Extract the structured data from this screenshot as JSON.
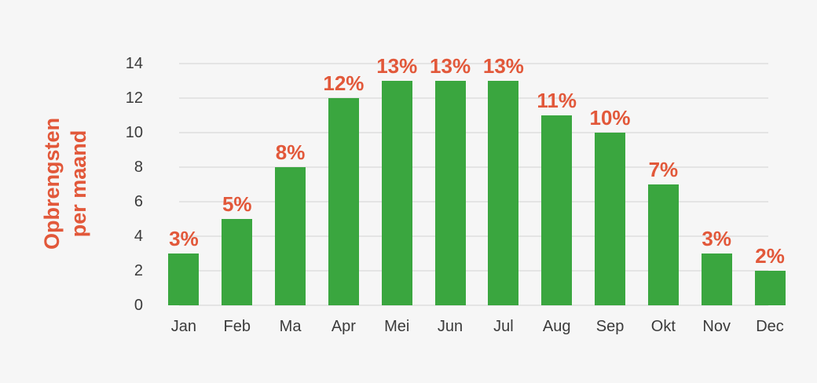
{
  "chart_data": {
    "type": "bar",
    "title": "",
    "categories": [
      "Jan",
      "Feb",
      "Ma",
      "Apr",
      "Mei",
      "Jun",
      "Jul",
      "Aug",
      "Sep",
      "Okt",
      "Nov",
      "Dec"
    ],
    "values": [
      3,
      5,
      8,
      12,
      13,
      13,
      13,
      11,
      10,
      7,
      3,
      2
    ],
    "bar_labels": [
      "3%",
      "5%",
      "8%",
      "12%",
      "13%",
      "13%",
      "13%",
      "11%",
      "10%",
      "7%",
      "3%",
      "2%"
    ],
    "ylabel_lines": [
      "Opbrengsten",
      "per maand"
    ],
    "xlabel": "",
    "yticks": [
      0,
      2,
      4,
      6,
      8,
      10,
      12,
      14
    ],
    "ylim": [
      0,
      14
    ],
    "grid": true,
    "legend_position": "none",
    "colors": {
      "bar": "#3aa63f",
      "value_label": "#e2583a",
      "ylabel": "#e2583a",
      "axis_text": "#3b3b3b",
      "gridline": "#e4e4e4",
      "background": "#f6f6f6"
    }
  }
}
